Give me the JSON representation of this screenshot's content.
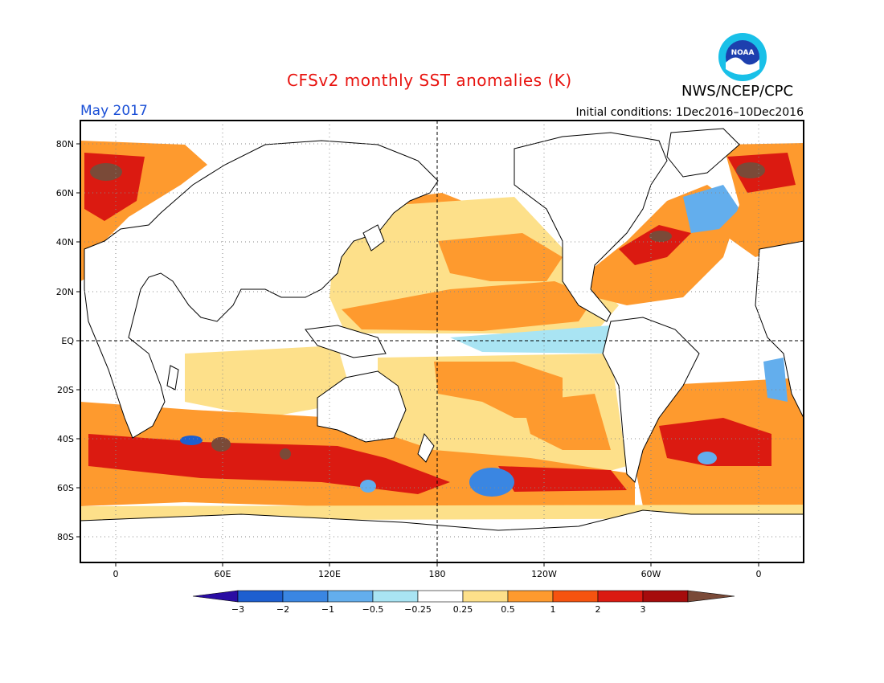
{
  "header": {
    "title": "CFSv2 monthly SST anomalies (K)",
    "month": "May 2017",
    "initial_conditions": "Initial conditions: 1Dec2016–10Dec2016",
    "agency": "NWS/NCEP/CPC",
    "logo_text": "NOAA",
    "logo_icon": "noaa-logo-icon"
  },
  "map": {
    "lon_labels": [
      "0",
      "60E",
      "120E",
      "180",
      "120W",
      "60W",
      "0"
    ],
    "lat_labels": [
      "80N",
      "60N",
      "40N",
      "20N",
      "EQ",
      "20S",
      "40S",
      "60S",
      "80S"
    ],
    "colors": {
      "ocean_neutral": "#ffffff",
      "land": "#ffffff",
      "coastline": "#000000",
      "grid": "#888888"
    }
  },
  "colorbar": {
    "labels": [
      "−3",
      "−2",
      "−1",
      "−0.5",
      "−0.25",
      "0.25",
      "0.5",
      "1",
      "2",
      "3"
    ],
    "colors": [
      "#2a0da3",
      "#1d5fd0",
      "#3a86e2",
      "#63aeed",
      "#a9e4f3",
      "#ffffff",
      "#fde08a",
      "#fe9a2e",
      "#f6530f",
      "#db1a11",
      "#a60c0c",
      "#7a4a38"
    ]
  },
  "anomaly_regions": [
    {
      "name": "north-atlantic-warm",
      "category": "2"
    },
    {
      "name": "north-pacific-warm",
      "category": "1"
    },
    {
      "name": "tropical-north-pacific-warm",
      "category": "1"
    },
    {
      "name": "southern-ocean-warm",
      "category": "2"
    },
    {
      "name": "south-pacific-cold",
      "category": "-1"
    },
    {
      "name": "equatorial-pacific-cool",
      "category": "-0.25"
    }
  ]
}
